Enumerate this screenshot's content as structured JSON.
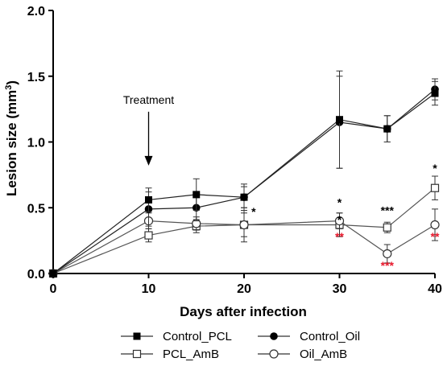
{
  "chart_data": {
    "type": "line",
    "title": "",
    "xlabel": "Days after infection",
    "ylabel_main": "Lesion size (mm",
    "ylabel_sup": "3",
    "ylabel_end": ")",
    "xlim": [
      0,
      40
    ],
    "ylim": [
      0,
      2.0
    ],
    "xticks": [
      0,
      10,
      20,
      30,
      40
    ],
    "xtick_labels": [
      "0",
      "10",
      "20",
      "30",
      "40"
    ],
    "yticks": [
      0,
      0.5,
      1.0,
      1.5,
      2.0
    ],
    "ytick_labels": [
      "0.0",
      "0.5",
      "1.0",
      "1.5",
      "2.0"
    ],
    "grid": false,
    "legend_position": "bottom",
    "series": [
      {
        "name": "Control_PCL",
        "marker": "square-filled",
        "x": [
          0,
          10,
          15,
          20,
          30,
          35,
          40
        ],
        "y": [
          0.0,
          0.56,
          0.6,
          0.58,
          1.17,
          1.1,
          1.37
        ],
        "err": [
          0,
          0.09,
          0.12,
          0.1,
          0.37,
          0.1,
          0.09
        ]
      },
      {
        "name": "Control_Oil",
        "marker": "circle-filled",
        "x": [
          0,
          10,
          15,
          20,
          30,
          35,
          40
        ],
        "y": [
          0.0,
          0.49,
          0.5,
          0.58,
          1.15,
          1.1,
          1.4
        ],
        "err": [
          0,
          0.13,
          0.1,
          0.08,
          0.35,
          0.1,
          0.08
        ]
      },
      {
        "name": "PCL_AmB",
        "marker": "square-open",
        "x": [
          0,
          10,
          15,
          20,
          30,
          35,
          40
        ],
        "y": [
          0.0,
          0.29,
          0.36,
          0.37,
          0.37,
          0.35,
          0.65
        ],
        "err": [
          0,
          0.05,
          0.05,
          0.09,
          0.09,
          0.04,
          0.09
        ]
      },
      {
        "name": "Oil_AmB",
        "marker": "circle-open",
        "x": [
          0,
          10,
          15,
          20,
          30,
          35,
          40
        ],
        "y": [
          0.0,
          0.4,
          0.38,
          0.37,
          0.4,
          0.15,
          0.37
        ],
        "err": [
          0,
          0.06,
          0.05,
          0.13,
          0.06,
          0.07,
          0.12
        ]
      }
    ],
    "annotations": [
      {
        "text": "Treatment",
        "x": 10,
        "arrow_to_y": 0.82,
        "arrow_from_y": 1.23
      }
    ],
    "significance": [
      {
        "x": 21,
        "y": 0.44,
        "text": "*",
        "color": "#000000"
      },
      {
        "x": 30,
        "y": 0.51,
        "text": "*",
        "color": "#000000"
      },
      {
        "x": 30,
        "y": 0.38,
        "text": "*",
        "color": "#000000"
      },
      {
        "x": 30,
        "y": 0.25,
        "text": "**",
        "color": "#e8192c"
      },
      {
        "x": 35,
        "y": 0.45,
        "text": "***",
        "color": "#000000"
      },
      {
        "x": 35,
        "y": 0.03,
        "text": "***",
        "color": "#e8192c"
      },
      {
        "x": 40,
        "y": 0.77,
        "text": "*",
        "color": "#000000"
      },
      {
        "x": 40,
        "y": 0.25,
        "text": "**",
        "color": "#e8192c"
      }
    ]
  }
}
